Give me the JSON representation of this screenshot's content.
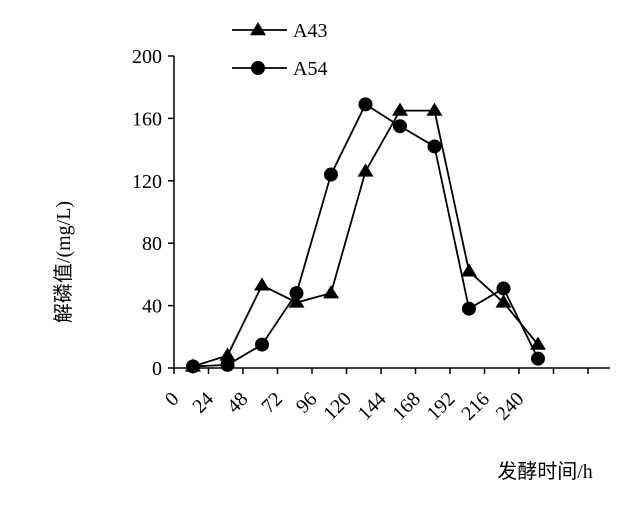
{
  "chart_data": {
    "type": "line",
    "title": "",
    "xlabel": "发酵时间/h",
    "ylabel": "解磷值/(mg/L)",
    "x_ticks": [
      "0",
      "24",
      "48",
      "72",
      "96",
      "120",
      "144",
      "168",
      "192",
      "216",
      "240"
    ],
    "y_ticks": [
      "0",
      "40",
      "80",
      "120",
      "160",
      "200"
    ],
    "ylim": [
      0,
      200
    ],
    "x": [
      0,
      24,
      48,
      72,
      96,
      120,
      144,
      168,
      192,
      216,
      240
    ],
    "grid": false,
    "legend_position": "top-left",
    "series": [
      {
        "name": "A43",
        "marker": "triangle",
        "color": "#000000",
        "values": [
          1,
          8,
          53,
          42,
          48,
          126,
          165,
          165,
          62,
          42,
          15
        ]
      },
      {
        "name": "A54",
        "marker": "circle",
        "color": "#000000",
        "values": [
          1,
          2,
          15,
          48,
          124,
          169,
          155,
          142,
          38,
          51,
          6
        ]
      }
    ]
  }
}
